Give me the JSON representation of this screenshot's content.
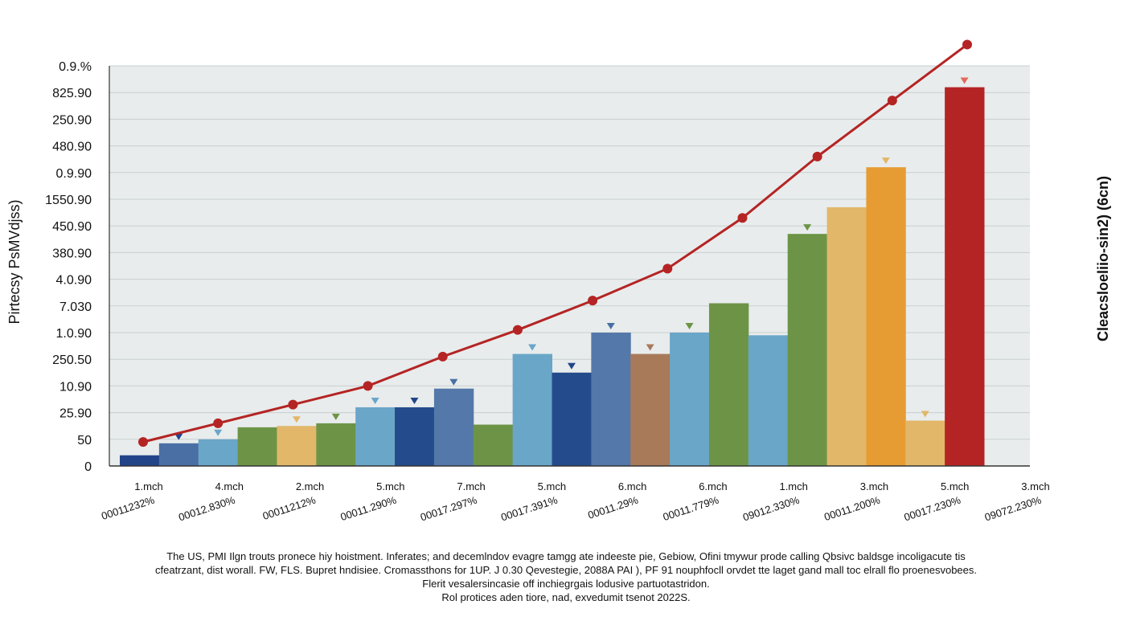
{
  "chart_data": {
    "type": "bar",
    "ylabel": "Pirtecsy PsMVdjss)",
    "ylabel_right": "Cleacsloeliio-sin2) (6cn)",
    "y_tick_labels": [
      "0",
      "50",
      "25.90",
      "10.90",
      "250.50",
      "1.0.90",
      "7.030",
      "4.0.90",
      "380.90",
      "450.90",
      "1550.90",
      "0.9.90",
      "480.90",
      "250.90",
      "825.90",
      "0.9.%"
    ],
    "x_tick_labels": [
      "1.mch",
      "4.mch",
      "2.mch",
      "5.mch",
      "7.mch",
      "5.mch",
      "6.mch",
      "6.mch",
      "1.mch",
      "3.mch",
      "5.mch",
      "3.mch"
    ],
    "x_tick_labels_2": [
      "00011232%",
      "00012.830%",
      "00011212%",
      "00011.290%",
      "00017.297%",
      "00017.391%",
      "00011.29%",
      "00011.779%",
      "09012.330%",
      "00011.200%",
      "00017.230%",
      "09072.230%"
    ],
    "ylim": [
      0,
      15
    ],
    "grid": true,
    "values": [
      0.4,
      0.85,
      1.0,
      1.45,
      1.5,
      1.6,
      2.2,
      2.2,
      2.9,
      1.55,
      4.2,
      3.5,
      5.0,
      4.2,
      5.0,
      6.1,
      4.9,
      8.7,
      9.7,
      11.2,
      1.7,
      14.2
    ],
    "bar_colors": [
      "#22458a",
      "#4a6fa5",
      "#6aa6c8",
      "#6d9446",
      "#e2b76a",
      "#6d9446",
      "#6aa6c8",
      "#244c8c",
      "#5578aa",
      "#6d9446",
      "#6aa6c8",
      "#244c8c",
      "#5578aa",
      "#a87a5a",
      "#6aa6c8",
      "#6d9446",
      "#6aa6c8",
      "#6d9446",
      "#e2b76a",
      "#e79c33",
      "#e2b76a",
      "#b52424"
    ],
    "bar_markers": [
      false,
      true,
      true,
      false,
      true,
      true,
      true,
      true,
      true,
      false,
      true,
      true,
      true,
      true,
      true,
      false,
      false,
      true,
      false,
      true,
      true,
      true
    ],
    "bar_marker_colors": [
      "",
      "#22458a",
      "#6aa6c8",
      "",
      "#e2b76a",
      "#6d9446",
      "#6aa6c8",
      "#22458a",
      "#4a6fa5",
      "",
      "#6aa6c8",
      "#22458a",
      "#4a6fa5",
      "#a87a5a",
      "#6d9446",
      "",
      "",
      "#6d9446",
      "",
      "#e2b76a",
      "#e2b76a",
      "#e26a5a"
    ],
    "line_values": [
      0.9,
      1.6,
      2.3,
      3.0,
      4.1,
      5.1,
      6.2,
      7.4,
      9.3,
      11.6,
      13.7,
      15.8
    ],
    "line_color": "#b52424",
    "caption": [
      "The US, PMI Ilgn trouts pronece hiy hoistment. Inferates; and decemlndov evagre tamgg ate indeeste pie, Gebiow, Ofini tmywur prode calling Qbsivc baldsge incoligacute tis",
      "cfeatrzant, dist worall. FW, FLS. Bupret hndisiee. Cromassthons for 1UP. J 0.30 Qevestegie, 2088A PAI ), PF 91 nouphfocll orvdet tte laget gand mall toc elrall flo proenesvobees.",
      "Flerit vesalersincasie off inchiegrgais lodusive partuotastridon.",
      "Rol protices aden tiore, nad, exvedumit tsenot 2022S."
    ]
  }
}
